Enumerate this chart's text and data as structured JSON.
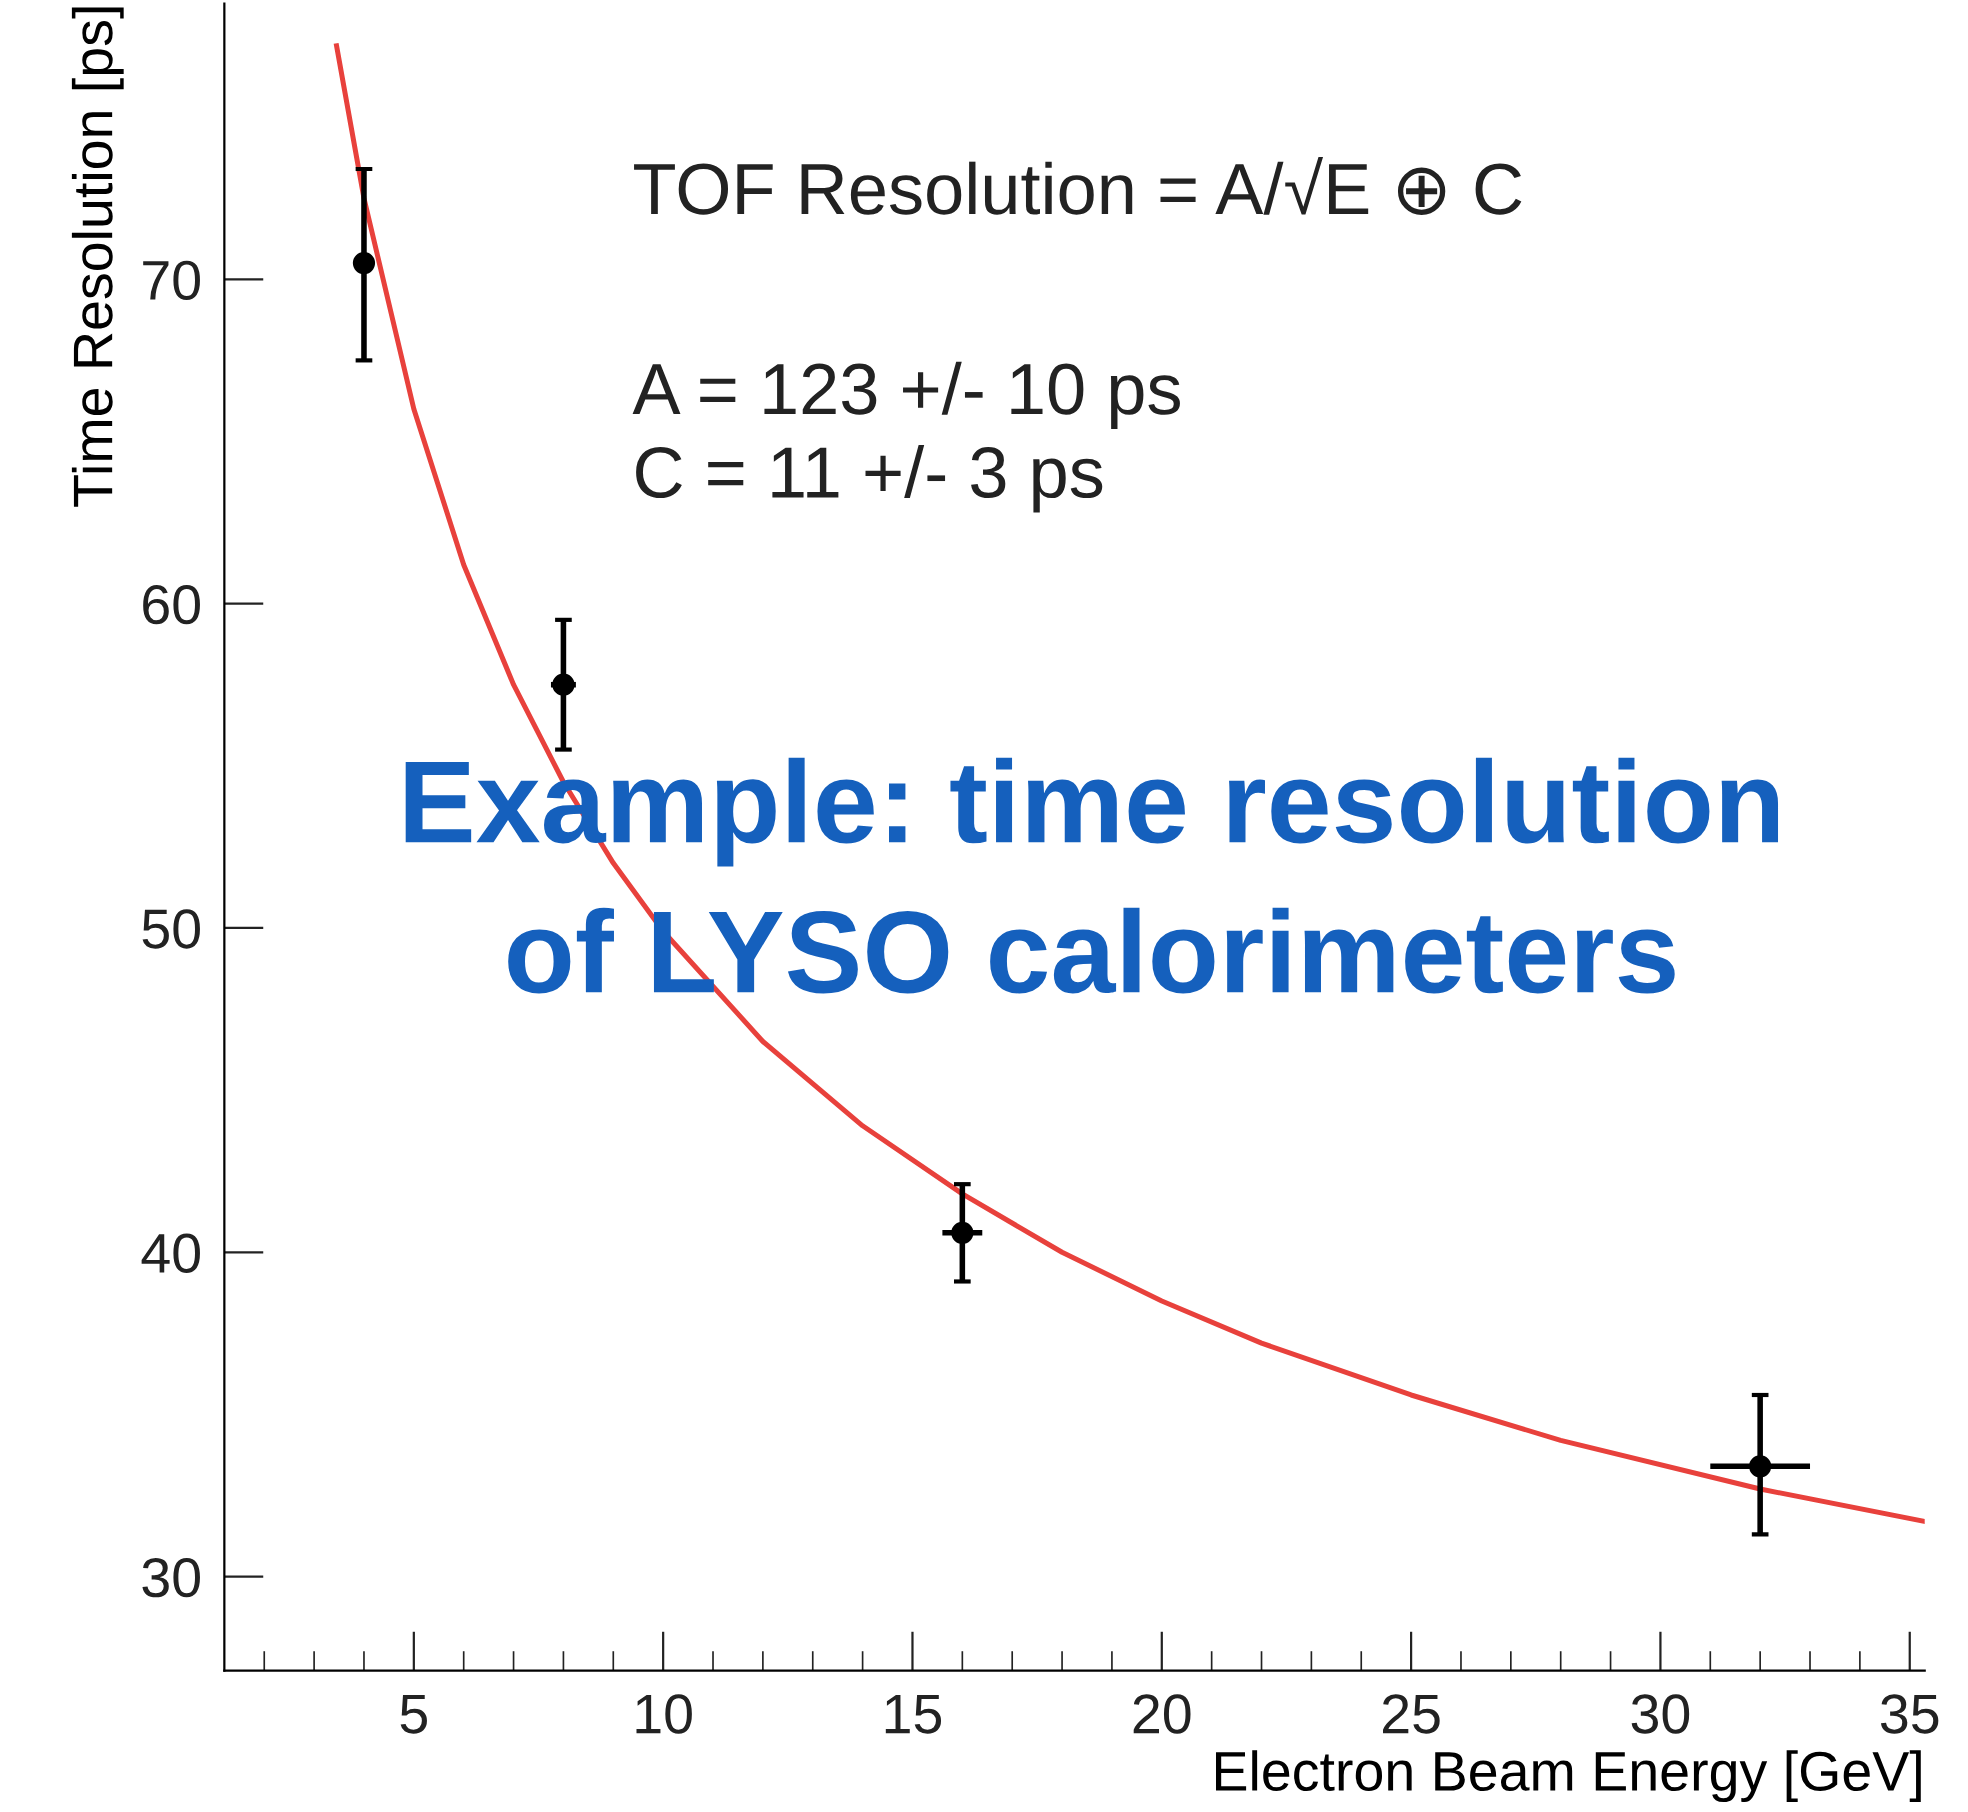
{
  "chart_data": {
    "type": "scatter",
    "xlabel": "Electron Beam Energy [GeV]",
    "ylabel": "Time Resolution [ps]",
    "xlim": [
      1.2,
      35.3
    ],
    "ylim": [
      27.1,
      78.5
    ],
    "xticks": [
      5,
      10,
      15,
      20,
      25,
      30,
      35
    ],
    "yticks": [
      30,
      40,
      50,
      60,
      70
    ],
    "grid": false,
    "series": [
      {
        "color": "#000000",
        "marker": "circle",
        "x": [
          4,
          8,
          16,
          32
        ],
        "values": [
          70.5,
          57.5,
          40.6,
          33.4
        ],
        "errors": [
          [
            67.5,
            73.4
          ],
          [
            55.5,
            59.5
          ],
          [
            39.1,
            42.1
          ],
          [
            31.3,
            35.6
          ]
        ],
        "xerrors": [
          null,
          0.25,
          0.4,
          1.0
        ]
      },
      {
        "type": "line",
        "color": "#e8413c",
        "marker": "none",
        "line_style": "solid",
        "x": [
          3.45,
          4,
          5,
          6,
          7,
          8,
          9,
          10,
          12,
          14,
          16,
          18,
          20,
          22,
          25,
          28,
          32,
          35.3
        ],
        "values": [
          77.2,
          72.5,
          66.0,
          61.2,
          57.5,
          54.5,
          52.0,
          49.9,
          46.5,
          43.9,
          41.8,
          40.0,
          38.5,
          37.2,
          35.6,
          34.2,
          32.7,
          31.7
        ]
      }
    ],
    "annotations": [
      "TOF Resolution = A/√E ⊕ C",
      "A = 123 +/- 10 ps",
      "C = 11 +/- 3 ps",
      "Example: time resolution",
      "of LYSO calorimeters"
    ]
  }
}
